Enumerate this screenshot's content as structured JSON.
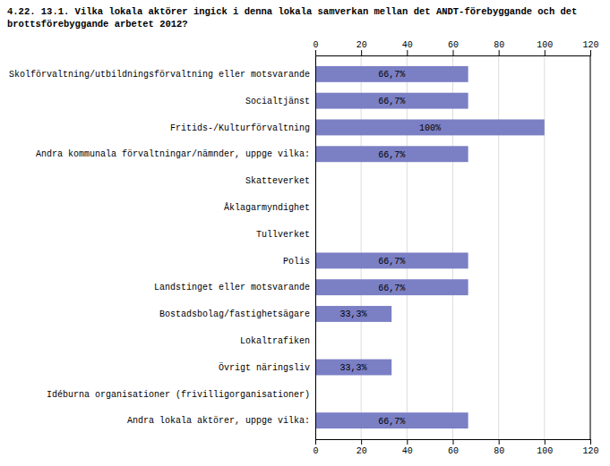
{
  "chart_data": {
    "type": "bar",
    "orientation": "horizontal",
    "title": "4.22. 13.1. Vilka lokala aktörer ingick i denna lokala samverkan mellan det ANDT-förebyggande och det\nbrottsförebyggande arbetet 2012?",
    "categories": [
      "Skolförvaltning/utbildningsförvaltning eller motsvarande",
      "Socialtjänst",
      "Fritids-/Kulturförvaltning",
      "Andra kommunala förvaltningar/nämnder, uppge vilka:",
      "Skatteverket",
      "Åklagarmyndighet",
      "Tullverket",
      "Polis",
      "Landstinget eller motsvarande",
      "Bostadsbolag/fastighetsägare",
      "Lokaltrafiken",
      "Övrigt näringsliv",
      "Idéburna organisationer (frivilligorganisationer)",
      "Andra lokala aktörer, uppge vilka:"
    ],
    "values": [
      66.7,
      66.7,
      100.0,
      66.7,
      0,
      0,
      0,
      66.7,
      66.7,
      33.3,
      0,
      33.3,
      0,
      66.7
    ],
    "value_labels": [
      "66,7%",
      "66,7%",
      "100%",
      "66,7%",
      null,
      null,
      null,
      "66,7%",
      "66,7%",
      "33,3%",
      null,
      "33,3%",
      null,
      "66,7%"
    ],
    "data_labels": true,
    "color": "#7B7FC4",
    "xlim": [
      0,
      120
    ],
    "xticks": [
      0,
      20,
      40,
      60,
      80,
      100,
      120
    ],
    "grid": true
  }
}
